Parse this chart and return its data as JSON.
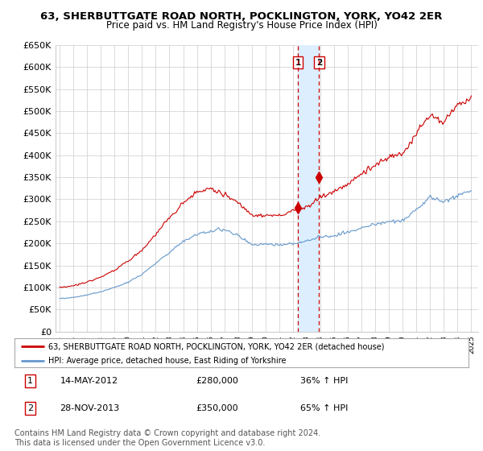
{
  "title": "63, SHERBUTTGATE ROAD NORTH, POCKLINGTON, YORK, YO42 2ER",
  "subtitle": "Price paid vs. HM Land Registry's House Price Index (HPI)",
  "legend_line1": "63, SHERBUTTGATE ROAD NORTH, POCKLINGTON, YORK, YO42 2ER (detached house)",
  "legend_line2": "HPI: Average price, detached house, East Riding of Yorkshire",
  "footer": "Contains HM Land Registry data © Crown copyright and database right 2024.\nThis data is licensed under the Open Government Licence v3.0.",
  "sale1_date": 2012.37,
  "sale1_label": "1",
  "sale1_price": 280000,
  "sale1_text": "14-MAY-2012",
  "sale1_pct": "36% ↑ HPI",
  "sale2_date": 2013.91,
  "sale2_label": "2",
  "sale2_price": 350000,
  "sale2_text": "28-NOV-2013",
  "sale2_pct": "65% ↑ HPI",
  "ylim": [
    0,
    650000
  ],
  "xlim": [
    1994.7,
    2025.5
  ],
  "yticks": [
    0,
    50000,
    100000,
    150000,
    200000,
    250000,
    300000,
    350000,
    400000,
    450000,
    500000,
    550000,
    600000,
    650000
  ],
  "ytick_labels": [
    "£0",
    "£50K",
    "£100K",
    "£150K",
    "£200K",
    "£250K",
    "£300K",
    "£350K",
    "£400K",
    "£450K",
    "£500K",
    "£550K",
    "£600K",
    "£650K"
  ],
  "xticks": [
    1995,
    1996,
    1997,
    1998,
    1999,
    2000,
    2001,
    2002,
    2003,
    2004,
    2005,
    2006,
    2007,
    2008,
    2009,
    2010,
    2011,
    2012,
    2013,
    2014,
    2015,
    2016,
    2017,
    2018,
    2019,
    2020,
    2021,
    2022,
    2023,
    2024,
    2025
  ],
  "red_color": "#cc0000",
  "blue_color": "#6699cc",
  "shade_color": "#ddeeff",
  "dashed_color": "#cc0000",
  "grid_color": "#cccccc",
  "bg_color": "#ffffff",
  "box_color": "#cc0000",
  "title_fontsize": 9.5,
  "subtitle_fontsize": 8.5,
  "axis_fontsize": 8,
  "legend_fontsize": 8,
  "footer_fontsize": 7
}
